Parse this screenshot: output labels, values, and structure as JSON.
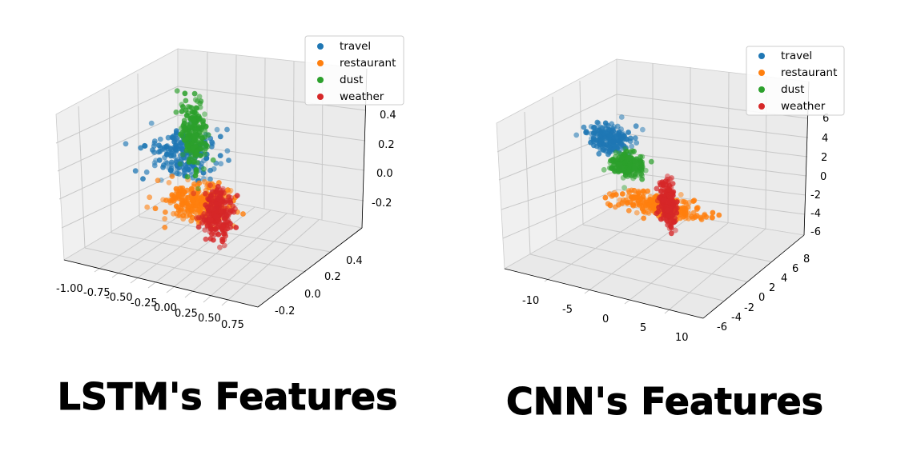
{
  "colors": {
    "travel": "#1f77b4",
    "restaurant": "#ff7f0e",
    "dust": "#2ca02c",
    "weather": "#d62728",
    "pane": "#f0f0f0",
    "grid": "#c8c8c8"
  },
  "chart_data": [
    {
      "type": "scatter3d",
      "caption": "LSTM's Features",
      "legend": {
        "placement": "top-right",
        "entries": [
          "travel",
          "restaurant",
          "dust",
          "weather"
        ]
      },
      "axes": {
        "x": {
          "range": [
            -1.1,
            0.85
          ],
          "ticks": [
            "-1.00",
            "-0.75",
            "-0.50",
            "-0.25",
            "0.00",
            "0.25",
            "0.50",
            "0.75"
          ],
          "tick_values": [
            -1.0,
            -0.75,
            -0.5,
            -0.25,
            0.0,
            0.25,
            0.5,
            0.75
          ]
        },
        "y": {
          "range": [
            -0.3,
            0.5
          ],
          "ticks": [
            "-0.2",
            "0.0",
            "0.2",
            "0.4"
          ],
          "tick_values": [
            -0.2,
            0.0,
            0.2,
            0.4
          ]
        },
        "z": {
          "range": [
            -0.35,
            0.45
          ],
          "ticks": [
            "-0.2",
            "0.0",
            "0.2",
            "0.4"
          ],
          "tick_values": [
            -0.2,
            0.0,
            0.2,
            0.4
          ]
        }
      },
      "grid": true,
      "series": [
        {
          "name": "travel",
          "center": [
            -0.6,
            0.25,
            0.0
          ],
          "spread": [
            0.15,
            0.07,
            0.05
          ],
          "count": 220
        },
        {
          "name": "restaurant",
          "center": [
            0.1,
            -0.15,
            0.05
          ],
          "spread": [
            0.15,
            0.06,
            0.04
          ],
          "count": 260
        },
        {
          "name": "dust",
          "center": [
            -0.4,
            0.2,
            0.15
          ],
          "spread": [
            0.04,
            0.04,
            0.09
          ],
          "count": 220
        },
        {
          "name": "weather",
          "center": [
            -0.2,
            0.2,
            -0.25
          ],
          "spread": [
            0.05,
            0.04,
            0.06
          ],
          "count": 240
        }
      ]
    },
    {
      "type": "scatter3d",
      "caption": "CNN's Features",
      "legend": {
        "placement": "top-right",
        "entries": [
          "travel",
          "restaurant",
          "dust",
          "weather"
        ]
      },
      "axes": {
        "x": {
          "range": [
            -14,
            11
          ],
          "ticks": [
            "-10",
            "-5",
            "0",
            "5",
            "10"
          ],
          "tick_values": [
            -10,
            -5,
            0,
            5,
            10
          ]
        },
        "y": {
          "range": [
            -7,
            9
          ],
          "ticks": [
            "-6",
            "-4",
            "-2",
            "0",
            "2",
            "4",
            "6",
            "8"
          ],
          "tick_values": [
            -6,
            -4,
            -2,
            0,
            2,
            4,
            6,
            8
          ]
        },
        "z": {
          "range": [
            -7,
            7
          ],
          "ticks": [
            "-6",
            "-4",
            "-2",
            "0",
            "2",
            "4",
            "6"
          ],
          "tick_values": [
            -6,
            -4,
            -2,
            0,
            2,
            4,
            6
          ]
        }
      },
      "grid": true,
      "series": [
        {
          "name": "travel",
          "center": [
            -9,
            4,
            1
          ],
          "spread": [
            1.2,
            0.6,
            0.6
          ],
          "count": 200
        },
        {
          "name": "restaurant",
          "center": [
            4,
            -4,
            1
          ],
          "spread": [
            2.5,
            0.6,
            0.4
          ],
          "count": 280
        },
        {
          "name": "dust",
          "center": [
            -6,
            3,
            -0.5
          ],
          "spread": [
            0.9,
            0.5,
            0.5
          ],
          "count": 240
        },
        {
          "name": "weather",
          "center": [
            -2,
            4,
            -4
          ],
          "spread": [
            0.4,
            0.3,
            1.0
          ],
          "count": 220
        }
      ]
    }
  ]
}
